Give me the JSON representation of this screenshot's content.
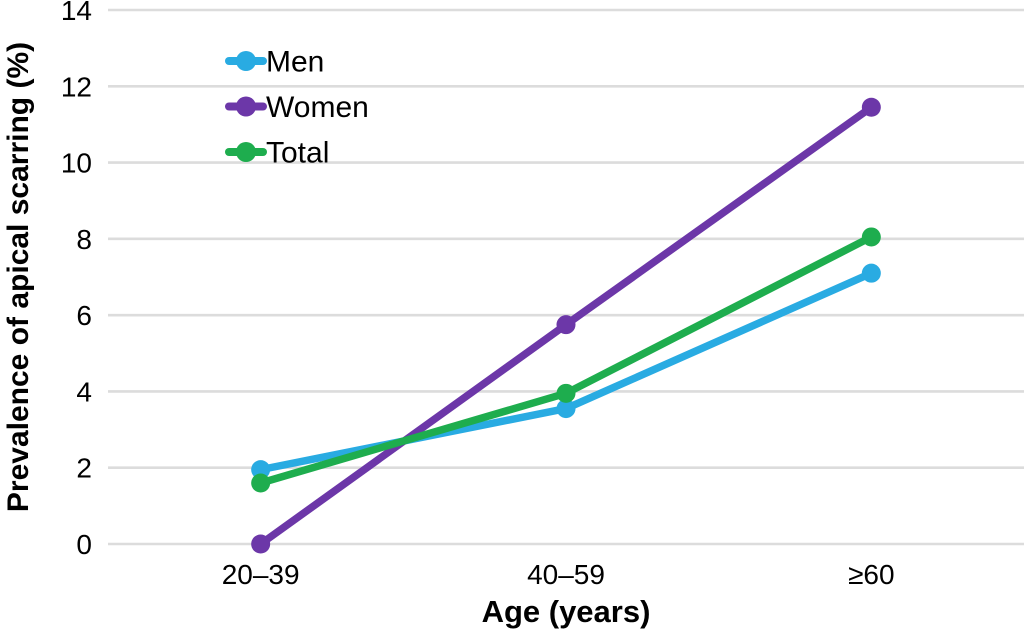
{
  "figure": {
    "background": "#FFFFFF",
    "text_color": "#000000"
  },
  "chart_data": {
    "type": "line",
    "title": "",
    "categories": [
      "20–39",
      "40–59",
      "≥60"
    ],
    "series": [
      {
        "name": "Men",
        "color": "#29ABE2",
        "values": [
          1.95,
          3.55,
          7.1
        ]
      },
      {
        "name": "Women",
        "color": "#6C37A8",
        "values": [
          0,
          5.75,
          11.45
        ]
      },
      {
        "name": "Total",
        "color": "#1EAD4E",
        "values": [
          1.6,
          3.95,
          8.05
        ]
      }
    ],
    "xlabel": "Age (years)",
    "ylabel": "Prevalence of apical scarring (%)",
    "ylim": [
      0,
      14
    ],
    "yticks": [
      0,
      2,
      4,
      6,
      8,
      10,
      12,
      14
    ],
    "grid": "horizontal",
    "gridline_color": "#DCDCDC",
    "legend": {
      "position": "inside-top-left",
      "labels": [
        "Men",
        "Women",
        "Total"
      ]
    },
    "marker": "circle"
  }
}
